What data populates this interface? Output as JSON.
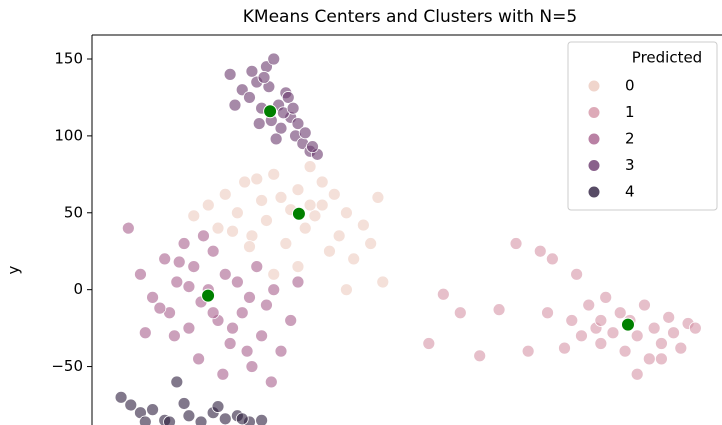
{
  "chart_data": {
    "type": "scatter",
    "title": "KMeans Centers and Clusters with N=5",
    "ylabel": "y",
    "legend_title": "Predicted",
    "legend": "upper right",
    "xlim": [
      -60,
      200
    ],
    "ylim": [
      -88,
      165.6
    ],
    "yticks": [
      {
        "value": -50,
        "label": "−50"
      },
      0,
      50,
      100,
      150
    ],
    "series": [
      {
        "name": "0",
        "color": "#eccbbf",
        "x": [
          -18,
          -12,
          -8,
          -5,
          0,
          3,
          6,
          10,
          12,
          15,
          18,
          20,
          22,
          25,
          28,
          30,
          32,
          35,
          38,
          40,
          42,
          45,
          48,
          52,
          55,
          58,
          60,
          5,
          15,
          25,
          35,
          45,
          -2,
          8,
          30
        ],
        "y": [
          48,
          55,
          40,
          62,
          50,
          70,
          35,
          58,
          45,
          75,
          60,
          30,
          52,
          65,
          40,
          80,
          48,
          55,
          25,
          62,
          35,
          50,
          20,
          42,
          30,
          60,
          5,
          28,
          10,
          15,
          70,
          0,
          38,
          72,
          55
        ]
      },
      {
        "name": "1",
        "color": "#d595a6",
        "x": [
          79,
          85,
          92,
          100,
          108,
          115,
          120,
          125,
          130,
          135,
          138,
          140,
          145,
          148,
          150,
          152,
          155,
          158,
          160,
          162,
          165,
          168,
          170,
          172,
          175,
          178,
          180,
          183,
          186,
          189,
          150,
          165,
          175,
          142,
          128
        ],
        "y": [
          -35,
          -3,
          -15,
          -43,
          -13,
          30,
          -40,
          25,
          20,
          -38,
          -20,
          10,
          -10,
          -25,
          -35,
          -5,
          -28,
          -15,
          -40,
          -20,
          -30,
          -10,
          -45,
          -25,
          -35,
          -18,
          -28,
          -38,
          -22,
          -25,
          -20,
          -55,
          -45,
          -30,
          -15
        ]
      },
      {
        "name": "2",
        "color": "#a8618d",
        "x": [
          -45,
          -40,
          -35,
          -30,
          -28,
          -25,
          -22,
          -20,
          -18,
          -15,
          -12,
          -10,
          -8,
          -5,
          -3,
          0,
          2,
          5,
          8,
          10,
          12,
          15,
          18,
          22,
          25,
          -32,
          -26,
          -16,
          -6,
          4,
          -14,
          -24,
          -2,
          6,
          -10,
          -20,
          14,
          -38
        ],
        "y": [
          40,
          10,
          -5,
          20,
          -15,
          5,
          30,
          -25,
          15,
          -8,
          0,
          25,
          -20,
          10,
          -35,
          5,
          -15,
          -5,
          15,
          -30,
          -10,
          0,
          -40,
          -20,
          5,
          -12,
          -30,
          -45,
          -55,
          -40,
          35,
          18,
          -25,
          -50,
          -15,
          2,
          -60,
          -28
        ]
      },
      {
        "name": "3",
        "color": "#6b3a6e",
        "x": [
          -3,
          2,
          5,
          8,
          10,
          12,
          14,
          15,
          17,
          18,
          20,
          22,
          24,
          27,
          30,
          33,
          6,
          9,
          13,
          16,
          19,
          21,
          25,
          28,
          31,
          -1,
          11,
          23
        ],
        "y": [
          140,
          130,
          125,
          135,
          118,
          145,
          110,
          150,
          120,
          105,
          128,
          112,
          100,
          95,
          90,
          88,
          142,
          108,
          132,
          98,
          115,
          125,
          108,
          102,
          93,
          120,
          138,
          118
        ]
      },
      {
        "name": "4",
        "color": "#2d1e3e",
        "x": [
          -48,
          -44,
          -40,
          -35,
          -30,
          -25,
          -20,
          -15,
          -10,
          -5,
          0,
          5,
          10,
          -38,
          -22,
          -8,
          2,
          -28
        ],
        "y": [
          -70,
          -75,
          -80,
          -78,
          -85,
          -60,
          -82,
          -86,
          -80,
          -84,
          -82,
          -86,
          -85,
          -86,
          -74,
          -76,
          -84,
          -86
        ]
      }
    ],
    "centers": {
      "color": "#008000",
      "x": [
        13.5,
        25.4,
        -12.1,
        161.2
      ],
      "y": [
        116,
        49.4,
        -3.9,
        -22.7
      ]
    }
  }
}
